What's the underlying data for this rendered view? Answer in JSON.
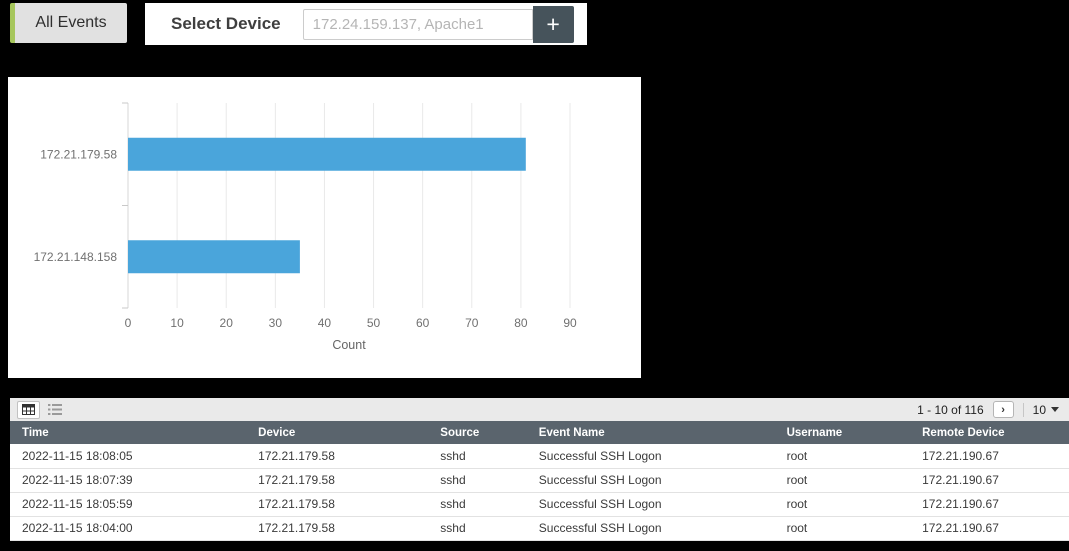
{
  "colors": {
    "accent-green": "#a6c65c",
    "bar-blue": "#4aa5db",
    "header-slate": "#5a646d",
    "button-slate": "#46535b",
    "toolbar-gray": "#eaeaea"
  },
  "topbar": {
    "all_events_label": "All Events",
    "select_device_label": "Select Device",
    "device_input_placeholder": "172.24.159.137, Apache1",
    "add_button_label": "+"
  },
  "chart_data": {
    "type": "bar",
    "orientation": "horizontal",
    "categories": [
      "172.21.179.58",
      "172.21.148.158"
    ],
    "values": [
      81,
      35
    ],
    "title": "",
    "xlabel": "Count",
    "ylabel": "",
    "xlim": [
      0,
      90
    ],
    "xticks": [
      0,
      10,
      20,
      30,
      40,
      50,
      60,
      70,
      80,
      90
    ],
    "grid": true,
    "bar_color": "#4aa5db"
  },
  "table": {
    "pagination": {
      "range_text": "1 - 10 of 116",
      "next_label": "›",
      "page_size": "10"
    },
    "columns": [
      "Time",
      "Device",
      "Source",
      "Event Name",
      "Username",
      "Remote Device"
    ],
    "column_widths_pct": [
      22.3,
      17.2,
      9.3,
      23.4,
      12.8,
      15.0
    ],
    "rows": [
      [
        "2022-11-15 18:08:05",
        "172.21.179.58",
        "sshd",
        "Successful SSH Logon",
        "root",
        "172.21.190.67"
      ],
      [
        "2022-11-15 18:07:39",
        "172.21.179.58",
        "sshd",
        "Successful SSH Logon",
        "root",
        "172.21.190.67"
      ],
      [
        "2022-11-15 18:05:59",
        "172.21.179.58",
        "sshd",
        "Successful SSH Logon",
        "root",
        "172.21.190.67"
      ],
      [
        "2022-11-15 18:04:00",
        "172.21.179.58",
        "sshd",
        "Successful SSH Logon",
        "root",
        "172.21.190.67"
      ]
    ]
  }
}
